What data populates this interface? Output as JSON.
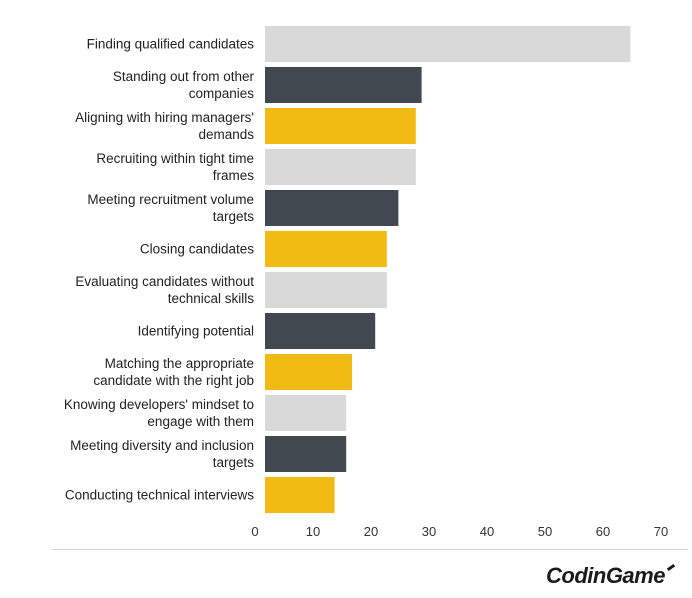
{
  "chart_data": {
    "type": "bar",
    "orientation": "horizontal",
    "categories": [
      [
        "Finding qualified candidates"
      ],
      [
        "Standing out from other",
        "companies"
      ],
      [
        "Aligning with hiring managers'",
        "demands"
      ],
      [
        "Recruiting within tight time",
        "frames"
      ],
      [
        "Meeting recruitment volume",
        "targets"
      ],
      [
        "Closing candidates"
      ],
      [
        "Evaluating candidates without",
        "technical skills"
      ],
      [
        "Identifying potential"
      ],
      [
        "Matching the appropriate",
        "candidate with the right job"
      ],
      [
        "Knowing developers' mindset to",
        "engage with them"
      ],
      [
        "Meeting diversity and inclusion",
        "targets"
      ],
      [
        "Conducting technical interviews"
      ]
    ],
    "values": [
      63,
      27,
      26,
      26,
      23,
      21,
      21,
      19,
      15,
      14,
      14,
      12
    ],
    "bar_colors": [
      "#d9d9d9",
      "#424850",
      "#f2bb13",
      "#d9d9d9",
      "#424850",
      "#f2bb13",
      "#d9d9d9",
      "#424850",
      "#f2bb13",
      "#d9d9d9",
      "#424850",
      "#f2bb13"
    ],
    "x_ticks": [
      0,
      10,
      20,
      30,
      40,
      50,
      60,
      70
    ],
    "xlim": [
      0,
      70
    ],
    "title": "",
    "xlabel": "",
    "ylabel": "",
    "grid": false,
    "legend": "none"
  },
  "branding": {
    "logo_text": "CodinGame"
  }
}
